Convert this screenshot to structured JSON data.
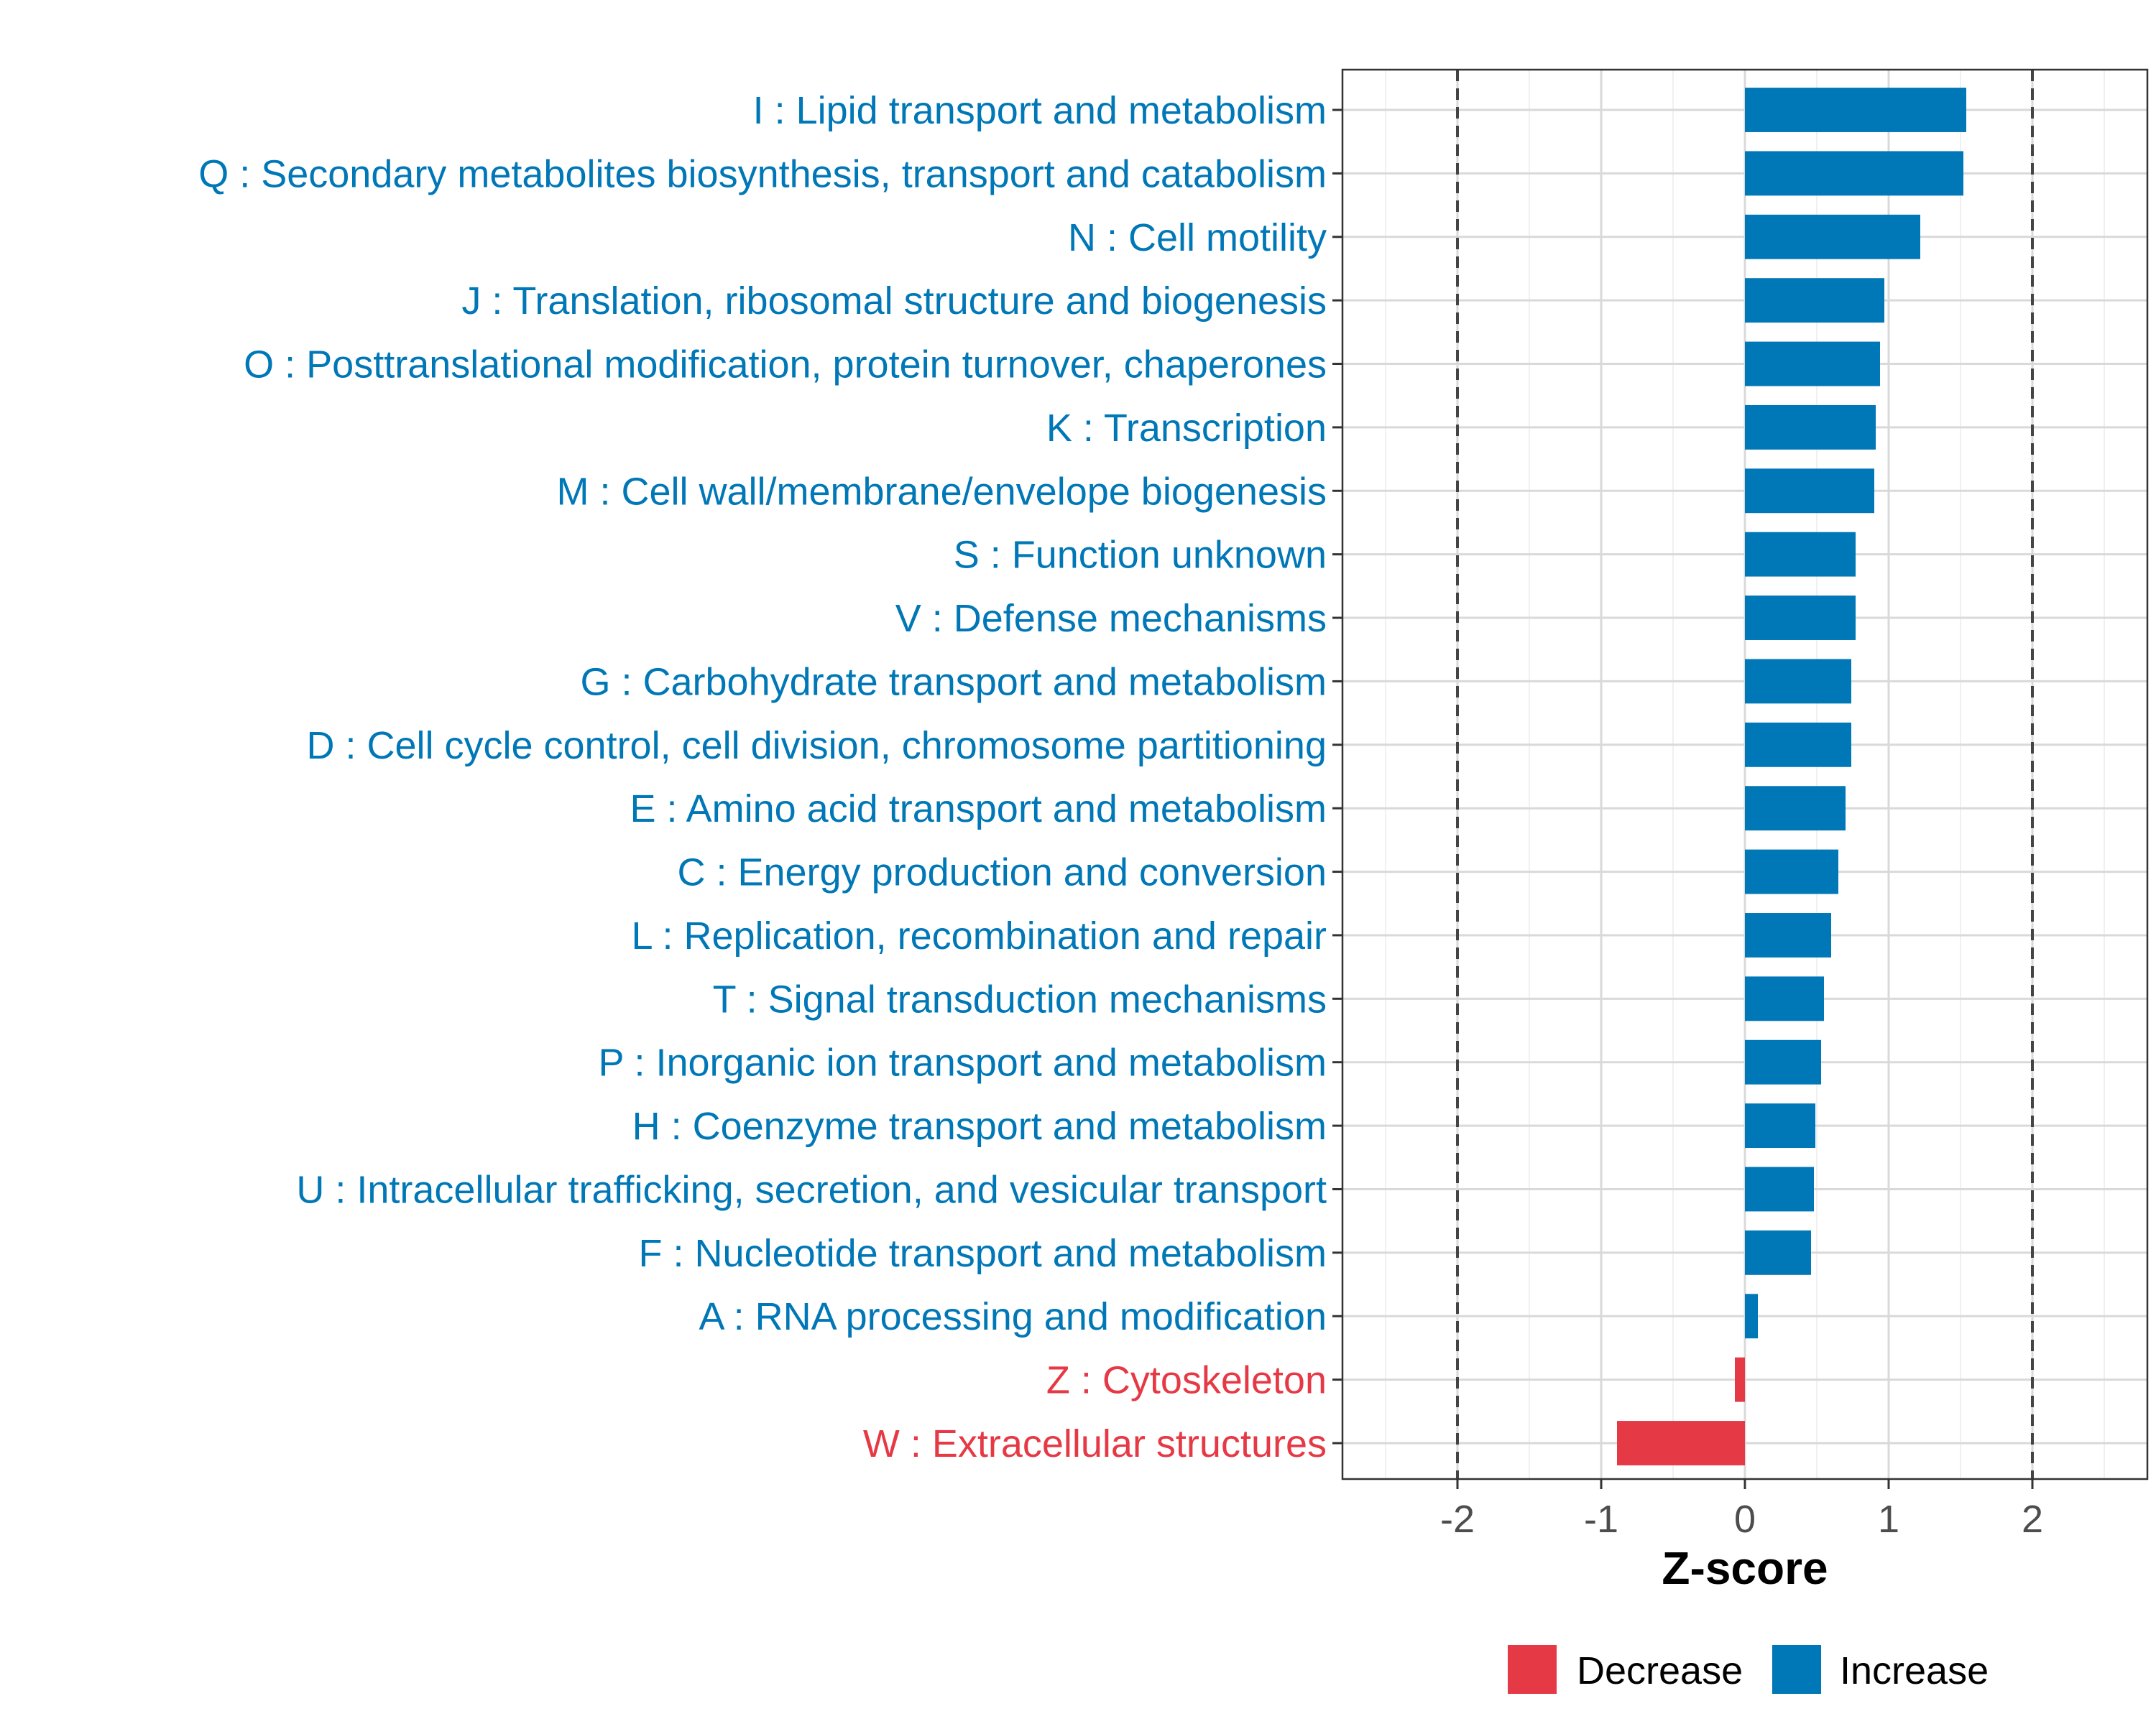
{
  "chart_data": {
    "type": "bar",
    "orientation": "horizontal",
    "title": "",
    "xlabel": "Z-score",
    "ylabel": "",
    "xlim": [
      -2.8,
      2.8
    ],
    "xticks": [
      -2,
      -1,
      0,
      1,
      2
    ],
    "xtick_labels": [
      "-2",
      "-1",
      "0",
      "1",
      "2"
    ],
    "reference_lines": [
      -2,
      2
    ],
    "grid": true,
    "legend_position": "bottom",
    "colors": {
      "Decrease": "#e63946",
      "Increase": "#0077b6"
    },
    "legend": [
      {
        "name": "Decrease",
        "color": "#e63946"
      },
      {
        "name": "Increase",
        "color": "#0077b6"
      }
    ],
    "categories": [
      "I : Lipid transport and metabolism",
      "Q : Secondary metabolites biosynthesis, transport and catabolism",
      "N : Cell motility",
      "J : Translation, ribosomal structure and biogenesis",
      "O : Posttranslational modification, protein turnover, chaperones",
      "K : Transcription",
      "M : Cell wall/membrane/envelope biogenesis",
      "S : Function unknown",
      "V : Defense mechanisms",
      "G : Carbohydrate transport and metabolism",
      "D : Cell cycle control, cell division, chromosome partitioning",
      "E : Amino acid transport and metabolism",
      "C : Energy production and conversion",
      "L : Replication, recombination and repair",
      "T : Signal transduction mechanisms",
      "P : Inorganic ion transport and metabolism",
      "H : Coenzyme transport and metabolism",
      "U : Intracellular trafficking, secretion, and vesicular transport",
      "F : Nucleotide transport and metabolism",
      "A : RNA processing and modification",
      "Z : Cytoskeleton",
      "W : Extracellular structures"
    ],
    "values": [
      1.54,
      1.52,
      1.22,
      0.97,
      0.94,
      0.91,
      0.9,
      0.77,
      0.77,
      0.74,
      0.74,
      0.7,
      0.65,
      0.6,
      0.55,
      0.53,
      0.49,
      0.48,
      0.46,
      0.09,
      -0.07,
      -0.89
    ],
    "groups": [
      "Increase",
      "Increase",
      "Increase",
      "Increase",
      "Increase",
      "Increase",
      "Increase",
      "Increase",
      "Increase",
      "Increase",
      "Increase",
      "Increase",
      "Increase",
      "Increase",
      "Increase",
      "Increase",
      "Increase",
      "Increase",
      "Increase",
      "Increase",
      "Decrease",
      "Decrease"
    ]
  }
}
